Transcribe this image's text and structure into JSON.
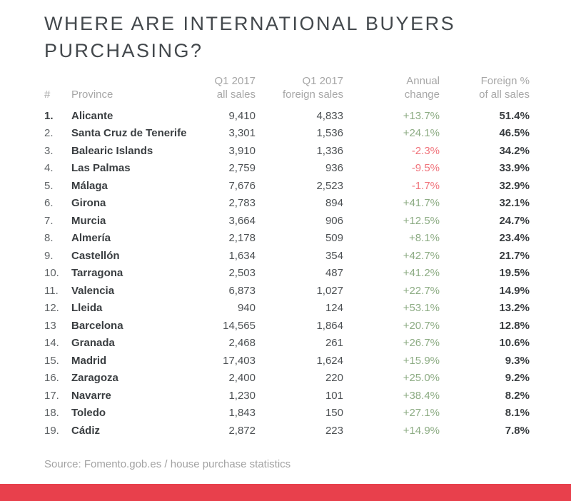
{
  "title": {
    "line1": "WHERE ARE INTERNATIONAL BUYERS",
    "line2": "PURCHASING?"
  },
  "table": {
    "columns": [
      {
        "id": "rank",
        "line1": "",
        "line2": "#"
      },
      {
        "id": "province",
        "line1": "",
        "line2": "Province"
      },
      {
        "id": "all_sales",
        "line1": "Q1 2017",
        "line2": "all sales"
      },
      {
        "id": "foreign_sales",
        "line1": "Q1 2017",
        "line2": "foreign sales"
      },
      {
        "id": "annual_change",
        "line1": "Annual",
        "line2": "change"
      },
      {
        "id": "foreign_pct",
        "line1": "Foreign %",
        "line2": "of all sales"
      }
    ],
    "rows": [
      {
        "rank": "1.",
        "rank_bold": true,
        "province": "Alicante",
        "all_sales": "9,410",
        "foreign_sales": "4,833",
        "annual_change": "+13.7%",
        "change_dir": "up",
        "foreign_pct": "51.4%"
      },
      {
        "rank": "2.",
        "rank_bold": false,
        "province": "Santa Cruz de Tenerife",
        "all_sales": "3,301",
        "foreign_sales": "1,536",
        "annual_change": "+24.1%",
        "change_dir": "up",
        "foreign_pct": "46.5%"
      },
      {
        "rank": "3.",
        "rank_bold": false,
        "province": "Balearic Islands",
        "all_sales": "3,910",
        "foreign_sales": "1,336",
        "annual_change": "-2.3%",
        "change_dir": "down",
        "foreign_pct": "34.2%"
      },
      {
        "rank": "4.",
        "rank_bold": false,
        "province": "Las Palmas",
        "all_sales": "2,759",
        "foreign_sales": "936",
        "annual_change": "-9.5%",
        "change_dir": "down",
        "foreign_pct": "33.9%"
      },
      {
        "rank": "5.",
        "rank_bold": false,
        "province": "Málaga",
        "all_sales": "7,676",
        "foreign_sales": "2,523",
        "annual_change": "-1.7%",
        "change_dir": "down",
        "foreign_pct": "32.9%"
      },
      {
        "rank": "6.",
        "rank_bold": false,
        "province": "Girona",
        "all_sales": "2,783",
        "foreign_sales": "894",
        "annual_change": "+41.7%",
        "change_dir": "up",
        "foreign_pct": "32.1%"
      },
      {
        "rank": "7.",
        "rank_bold": false,
        "province": "Murcia",
        "all_sales": "3,664",
        "foreign_sales": "906",
        "annual_change": "+12.5%",
        "change_dir": "up",
        "foreign_pct": "24.7%"
      },
      {
        "rank": "8.",
        "rank_bold": false,
        "province": "Almería",
        "all_sales": "2,178",
        "foreign_sales": "509",
        "annual_change": "+8.1%",
        "change_dir": "up",
        "foreign_pct": "23.4%"
      },
      {
        "rank": "9.",
        "rank_bold": false,
        "province": "Castellón",
        "all_sales": "1,634",
        "foreign_sales": "354",
        "annual_change": "+42.7%",
        "change_dir": "up",
        "foreign_pct": "21.7%"
      },
      {
        "rank": "10.",
        "rank_bold": false,
        "province": "Tarragona",
        "all_sales": "2,503",
        "foreign_sales": "487",
        "annual_change": "+41.2%",
        "change_dir": "up",
        "foreign_pct": "19.5%"
      },
      {
        "rank": "11.",
        "rank_bold": false,
        "province": "Valencia",
        "all_sales": "6,873",
        "foreign_sales": "1,027",
        "annual_change": "+22.7%",
        "change_dir": "up",
        "foreign_pct": "14.9%"
      },
      {
        "rank": "12.",
        "rank_bold": false,
        "province": "Lleida",
        "all_sales": "940",
        "foreign_sales": "124",
        "annual_change": "+53.1%",
        "change_dir": "up",
        "foreign_pct": "13.2%"
      },
      {
        "rank": "13",
        "rank_bold": false,
        "province": "Barcelona",
        "all_sales": "14,565",
        "foreign_sales": "1,864",
        "annual_change": "+20.7%",
        "change_dir": "up",
        "foreign_pct": "12.8%"
      },
      {
        "rank": "14.",
        "rank_bold": false,
        "province": "Granada",
        "all_sales": "2,468",
        "foreign_sales": "261",
        "annual_change": "+26.7%",
        "change_dir": "up",
        "foreign_pct": "10.6%"
      },
      {
        "rank": "15.",
        "rank_bold": false,
        "province": "Madrid",
        "all_sales": "17,403",
        "foreign_sales": "1,624",
        "annual_change": "+15.9%",
        "change_dir": "up",
        "foreign_pct": "9.3%"
      },
      {
        "rank": "16.",
        "rank_bold": false,
        "province": "Zaragoza",
        "all_sales": "2,400",
        "foreign_sales": "220",
        "annual_change": "+25.0%",
        "change_dir": "up",
        "foreign_pct": "9.2%"
      },
      {
        "rank": "17.",
        "rank_bold": false,
        "province": "Navarre",
        "all_sales": "1,230",
        "foreign_sales": "101",
        "annual_change": "+38.4%",
        "change_dir": "up",
        "foreign_pct": "8.2%"
      },
      {
        "rank": "18.",
        "rank_bold": false,
        "province": "Toledo",
        "all_sales": "1,843",
        "foreign_sales": "150",
        "annual_change": "+27.1%",
        "change_dir": "up",
        "foreign_pct": "8.1%"
      },
      {
        "rank": "19.",
        "rank_bold": false,
        "province": "Cádiz",
        "all_sales": "2,872",
        "foreign_sales": "223",
        "annual_change": "+14.9%",
        "change_dir": "up",
        "foreign_pct": "7.8%"
      }
    ]
  },
  "source": "Source: Fomento.gob.es / house purchase statistics",
  "colors": {
    "title_text": "#43484c",
    "header_text": "#a7a7a7",
    "positive_change": "#8dac84",
    "negative_change": "#f0737b",
    "bottom_bar": "#e8404c"
  },
  "chart_data": {
    "type": "table",
    "title": "WHERE ARE INTERNATIONAL BUYERS PURCHASING?",
    "columns": [
      "#",
      "Province",
      "Q1 2017 all sales",
      "Q1 2017 foreign sales",
      "Annual change (%)",
      "Foreign % of all sales"
    ],
    "rows": [
      [
        1,
        "Alicante",
        9410,
        4833,
        13.7,
        51.4
      ],
      [
        2,
        "Santa Cruz de Tenerife",
        3301,
        1536,
        24.1,
        46.5
      ],
      [
        3,
        "Balearic Islands",
        3910,
        1336,
        -2.3,
        34.2
      ],
      [
        4,
        "Las Palmas",
        2759,
        936,
        -9.5,
        33.9
      ],
      [
        5,
        "Málaga",
        7676,
        2523,
        -1.7,
        32.9
      ],
      [
        6,
        "Girona",
        2783,
        894,
        41.7,
        32.1
      ],
      [
        7,
        "Murcia",
        3664,
        906,
        12.5,
        24.7
      ],
      [
        8,
        "Almería",
        2178,
        509,
        8.1,
        23.4
      ],
      [
        9,
        "Castellón",
        1634,
        354,
        42.7,
        21.7
      ],
      [
        10,
        "Tarragona",
        2503,
        487,
        41.2,
        19.5
      ],
      [
        11,
        "Valencia",
        6873,
        1027,
        22.7,
        14.9
      ],
      [
        12,
        "Lleida",
        940,
        124,
        53.1,
        13.2
      ],
      [
        13,
        "Barcelona",
        14565,
        1864,
        20.7,
        12.8
      ],
      [
        14,
        "Granada",
        2468,
        261,
        26.7,
        10.6
      ],
      [
        15,
        "Madrid",
        17403,
        1624,
        15.9,
        9.3
      ],
      [
        16,
        "Zaragoza",
        2400,
        220,
        25.0,
        9.2
      ],
      [
        17,
        "Navarre",
        1230,
        101,
        38.4,
        8.2
      ],
      [
        18,
        "Toledo",
        1843,
        150,
        27.1,
        8.1
      ],
      [
        19,
        "Cádiz",
        2872,
        223,
        14.9,
        7.8
      ]
    ],
    "source": "Source: Fomento.gob.es / house purchase statistics",
    "legend_position": "none",
    "grid": false
  }
}
